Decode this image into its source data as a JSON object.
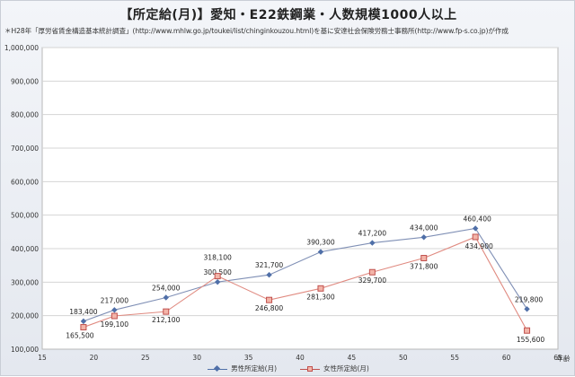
{
  "header": {
    "title": "【所定給(月)】愛知・E22鉄鋼業・人数規模1000人以上",
    "subtitle": "＊H28年「厚労省賃金構造基本統計調査」(http://www.mhlw.go.jp/toukei/list/chinginkouzou.html)を基に安達社会保険労務士事務所(http://www.fp-s.co.jp)が作成"
  },
  "chart_data": {
    "type": "line",
    "title": "【所定給(月)】愛知・E22鉄鋼業・人数規模1000人以上",
    "xlabel": "年齢",
    "ylabel": "",
    "xlim": [
      15,
      65
    ],
    "ylim": [
      100000,
      1000000
    ],
    "x_ticks": [
      15,
      20,
      25,
      30,
      35,
      40,
      45,
      50,
      55,
      60,
      65
    ],
    "y_ticks": [
      100000,
      200000,
      300000,
      400000,
      500000,
      600000,
      700000,
      800000,
      900000,
      1000000
    ],
    "x_tick_labels": [
      "15",
      "20",
      "25",
      "30",
      "35",
      "40",
      "45",
      "50",
      "55",
      "60",
      "65"
    ],
    "y_tick_labels": [
      "100,000",
      "200,000",
      "300,000",
      "400,000",
      "500,000",
      "600,000",
      "700,000",
      "800,000",
      "900,000",
      "1,000,000"
    ],
    "grid": true,
    "legend_position": "bottom",
    "series": [
      {
        "name": "男性所定給(月)",
        "color": "#4f6fa8",
        "marker": "diamond",
        "x": [
          19,
          22,
          27,
          32,
          37,
          42,
          47,
          52,
          57,
          62
        ],
        "values": [
          183400,
          217000,
          254000,
          300500,
          321700,
          390300,
          417200,
          434000,
          460400,
          219800
        ],
        "labels": [
          "183,400",
          "217,000",
          "254,000",
          "300,500",
          "321,700",
          "390,300",
          "417,200",
          "434,000",
          "460,400",
          "219,800"
        ]
      },
      {
        "name": "女性所定給(月)",
        "color": "#c0504d",
        "marker": "square",
        "x": [
          19,
          22,
          27,
          32,
          37,
          42,
          47,
          52,
          57,
          62
        ],
        "values": [
          165500,
          199100,
          212100,
          318100,
          246800,
          281300,
          329700,
          371800,
          434900,
          155600
        ],
        "labels": [
          "165,500",
          "199,100",
          "212,100",
          "318,100",
          "246,800",
          "281,300",
          "329,700",
          "371,800",
          "434,900",
          "155,600"
        ]
      }
    ]
  }
}
